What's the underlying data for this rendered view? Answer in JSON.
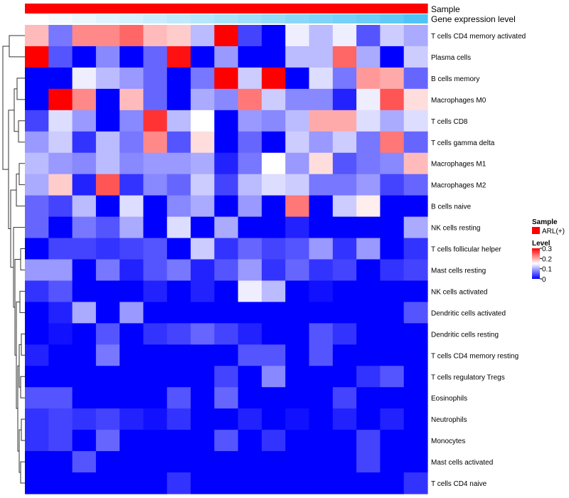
{
  "chart_data": {
    "type": "heatmap",
    "title": "",
    "annotation_tracks": [
      {
        "name": "Sample",
        "label": "Sample"
      },
      {
        "name": "Gene expression level",
        "label": "Gene expression level"
      }
    ],
    "legend": {
      "position": "right",
      "sample_title": "Sample",
      "sample_entries": [
        {
          "label": "ARL(+)",
          "color": "#ff0000"
        }
      ],
      "level_title": "Level",
      "level_ticks": [
        "0.3",
        "0.2",
        "0.1",
        "0"
      ],
      "level_tick_values": [
        0.3,
        0.2,
        0.1,
        0.0
      ],
      "value_range": [
        0,
        0.3
      ]
    },
    "colors": {
      "low": "#0000ff",
      "mid": "#ffffff",
      "high": "#ff0000",
      "sample_track": "#ff0000",
      "expression_low": "#ffffff",
      "expression_high": "#4fc3f7"
    },
    "n_columns": 17,
    "rows": [
      "T cells CD4 memory activated",
      "Plasma cells",
      "B cells memory",
      "Macrophages M0",
      "T cells CD8",
      "T cells gamma delta",
      "Macrophages M1",
      "Macrophages M2",
      "B cells naive",
      "NK cells resting",
      "T cells follicular helper",
      "Mast cells resting",
      "NK cells activated",
      "Dendritic cells activated",
      "Dendritic cells resting",
      "T cells CD4 memory resting",
      "T cells regulatory  Tregs",
      "Eosinophils",
      "Neutrophils",
      "Monocytes",
      "Mast cells activated",
      "T cells CD4 naive"
    ],
    "values": [
      [
        0.19,
        0.07,
        0.22,
        0.22,
        0.24,
        0.19,
        0.18,
        0.11,
        0.3,
        0.04,
        0.0,
        0.14,
        0.11,
        0.14,
        0.05,
        0.12,
        0.1
      ],
      [
        0.3,
        0.05,
        0.0,
        0.08,
        0.0,
        0.06,
        0.29,
        0.0,
        0.09,
        0.0,
        0.0,
        0.11,
        0.11,
        0.24,
        0.1,
        0.0,
        0.12
      ],
      [
        0.0,
        0.0,
        0.14,
        0.11,
        0.09,
        0.06,
        0.0,
        0.07,
        0.3,
        0.12,
        0.3,
        0.0,
        0.13,
        0.07,
        0.21,
        0.2,
        0.06
      ],
      [
        0.0,
        0.3,
        0.22,
        0.0,
        0.19,
        0.06,
        0.0,
        0.1,
        0.08,
        0.23,
        0.12,
        0.08,
        0.08,
        0.02,
        0.14,
        0.25,
        0.17
      ],
      [
        0.04,
        0.13,
        0.09,
        0.0,
        0.08,
        0.27,
        0.11,
        0.15,
        0.0,
        0.09,
        0.08,
        0.11,
        0.2,
        0.2,
        0.13,
        0.1,
        0.13
      ],
      [
        0.09,
        0.12,
        0.03,
        0.11,
        0.07,
        0.22,
        0.05,
        0.17,
        0.0,
        0.06,
        0.0,
        0.12,
        0.09,
        0.12,
        0.07,
        0.23,
        0.06
      ],
      [
        0.11,
        0.09,
        0.08,
        0.11,
        0.08,
        0.09,
        0.09,
        0.1,
        0.02,
        0.07,
        0.15,
        0.09,
        0.17,
        0.05,
        0.07,
        0.08,
        0.19
      ],
      [
        0.1,
        0.18,
        0.02,
        0.25,
        0.03,
        0.08,
        0.06,
        0.12,
        0.04,
        0.11,
        0.13,
        0.12,
        0.07,
        0.07,
        0.09,
        0.04,
        0.06
      ],
      [
        0.06,
        0.04,
        0.11,
        0.0,
        0.13,
        0.0,
        0.08,
        0.1,
        0.0,
        0.09,
        0.0,
        0.23,
        0.0,
        0.12,
        0.16,
        0.0,
        0.0
      ],
      [
        0.06,
        0.0,
        0.07,
        0.05,
        0.1,
        0.0,
        0.13,
        0.0,
        0.1,
        0.0,
        0.0,
        0.02,
        0.0,
        0.0,
        0.0,
        0.0,
        0.1
      ],
      [
        0.0,
        0.04,
        0.04,
        0.03,
        0.04,
        0.05,
        0.0,
        0.12,
        0.03,
        0.06,
        0.04,
        0.05,
        0.09,
        0.03,
        0.09,
        0.0,
        0.03
      ],
      [
        0.09,
        0.09,
        0.0,
        0.07,
        0.02,
        0.05,
        0.07,
        0.02,
        0.05,
        0.09,
        0.03,
        0.06,
        0.03,
        0.04,
        0.0,
        0.03,
        0.04
      ],
      [
        0.03,
        0.05,
        0.0,
        0.0,
        0.0,
        0.02,
        0.0,
        0.02,
        0.0,
        0.14,
        0.11,
        0.0,
        0.01,
        0.0,
        0.0,
        0.0,
        0.0
      ],
      [
        0.0,
        0.02,
        0.1,
        0.0,
        0.09,
        0.0,
        0.0,
        0.0,
        0.0,
        0.0,
        0.0,
        0.0,
        0.0,
        0.0,
        0.0,
        0.0,
        0.05
      ],
      [
        0.0,
        0.01,
        0.0,
        0.05,
        0.0,
        0.03,
        0.04,
        0.06,
        0.04,
        0.02,
        0.0,
        0.0,
        0.05,
        0.03,
        0.0,
        0.0,
        0.0
      ],
      [
        0.02,
        0.0,
        0.0,
        0.07,
        0.0,
        0.0,
        0.0,
        0.0,
        0.0,
        0.05,
        0.05,
        0.0,
        0.05,
        0.0,
        0.0,
        0.0,
        0.0
      ],
      [
        0.0,
        0.0,
        0.0,
        0.0,
        0.0,
        0.0,
        0.0,
        0.0,
        0.04,
        0.0,
        0.08,
        0.0,
        0.0,
        0.0,
        0.03,
        0.05,
        0.0
      ],
      [
        0.05,
        0.05,
        0.0,
        0.0,
        0.0,
        0.0,
        0.05,
        0.0,
        0.06,
        0.0,
        0.0,
        0.0,
        0.0,
        0.04,
        0.0,
        0.0,
        0.0
      ],
      [
        0.03,
        0.04,
        0.03,
        0.04,
        0.02,
        0.01,
        0.03,
        0.0,
        0.0,
        0.02,
        0.0,
        0.01,
        0.0,
        0.02,
        0.0,
        0.02,
        0.0
      ],
      [
        0.03,
        0.04,
        0.0,
        0.06,
        0.0,
        0.0,
        0.0,
        0.0,
        0.05,
        0.0,
        0.03,
        0.0,
        0.0,
        0.0,
        0.04,
        0.0,
        0.0
      ],
      [
        0.0,
        0.0,
        0.05,
        0.0,
        0.0,
        0.0,
        0.0,
        0.0,
        0.0,
        0.0,
        0.0,
        0.0,
        0.0,
        0.0,
        0.04,
        0.0,
        0.0
      ],
      [
        0.0,
        0.0,
        0.0,
        0.0,
        0.0,
        0.0,
        0.03,
        0.0,
        0.0,
        0.0,
        0.0,
        0.0,
        0.0,
        0.0,
        0.0,
        0.0,
        0.03
      ]
    ],
    "sample_annotation": [
      "ARL(+)",
      "ARL(+)",
      "ARL(+)",
      "ARL(+)",
      "ARL(+)",
      "ARL(+)",
      "ARL(+)",
      "ARL(+)",
      "ARL(+)",
      "ARL(+)",
      "ARL(+)",
      "ARL(+)",
      "ARL(+)",
      "ARL(+)",
      "ARL(+)",
      "ARL(+)",
      "ARL(+)"
    ],
    "expression_annotation": [
      0.0,
      0.06,
      0.12,
      0.18,
      0.24,
      0.3,
      0.36,
      0.42,
      0.48,
      0.54,
      0.6,
      0.66,
      0.72,
      0.78,
      0.84,
      0.9,
      1.0
    ]
  }
}
